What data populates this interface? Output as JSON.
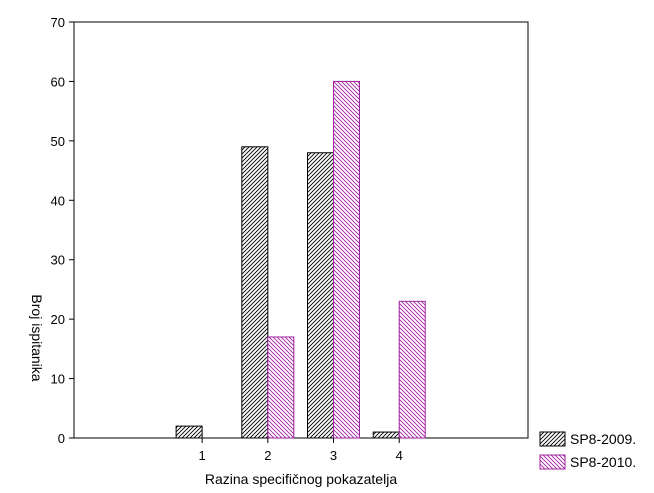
{
  "chart_data": {
    "type": "bar",
    "title": "",
    "xlabel": "Razina specifičnog pokazatelja",
    "ylabel": "Broj ispitanika",
    "categories": [
      "1",
      "2",
      "3",
      "4"
    ],
    "ylim": [
      0,
      70
    ],
    "yticks": [
      0,
      10,
      20,
      30,
      40,
      50,
      60,
      70
    ],
    "grid": false,
    "legend_position": "bottom-right",
    "series": [
      {
        "name": "SP8-2009.",
        "values": [
          2,
          49,
          48,
          1
        ],
        "color": "#000000",
        "pattern": "black-hatch"
      },
      {
        "name": "SP8-2010.",
        "values": [
          0,
          17,
          60,
          23
        ],
        "color": "#a020a0",
        "pattern": "magenta-hatch"
      }
    ]
  }
}
